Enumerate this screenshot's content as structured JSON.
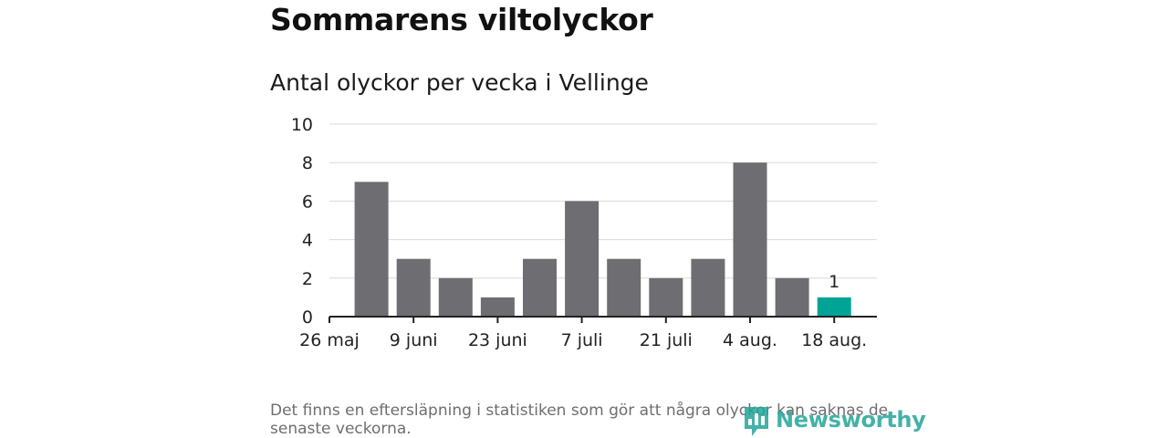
{
  "title": "Sommarens viltolyckor",
  "subtitle": "Antal olyckor per vecka i Vellinge",
  "footnote": "Det finns en eftersläpning i statistiken som gör att några olyckor kan saknas de senaste veckorna.",
  "logo": {
    "text": "Newsworthy",
    "icon": "newsworthy-logo-icon",
    "color": "#23a59a"
  },
  "chart_data": {
    "type": "bar",
    "categories": [
      "26 maj",
      "2 juni",
      "9 juni",
      "16 juni",
      "23 juni",
      "30 juni",
      "7 juli",
      "14 juli",
      "21 juli",
      "28 juli",
      "4 aug.",
      "11 aug.",
      "18 aug."
    ],
    "values": [
      0,
      7,
      3,
      2,
      1,
      3,
      6,
      3,
      2,
      3,
      8,
      2,
      1
    ],
    "x_tick_labels": [
      "26 maj",
      "9 juni",
      "23 juni",
      "7 juli",
      "21 juli",
      "4 aug.",
      "18 aug."
    ],
    "y_ticks": [
      0,
      2,
      4,
      6,
      8,
      10
    ],
    "ylim": [
      0,
      10
    ],
    "xlabel": "",
    "ylabel": "",
    "grid": true,
    "highlight": {
      "category": "18 aug.",
      "value": 1,
      "label": "1"
    },
    "colors": {
      "bar": "#6e6d72",
      "highlight": "#00a496",
      "grid": "#d9d9d9",
      "axis": "#222222"
    }
  }
}
